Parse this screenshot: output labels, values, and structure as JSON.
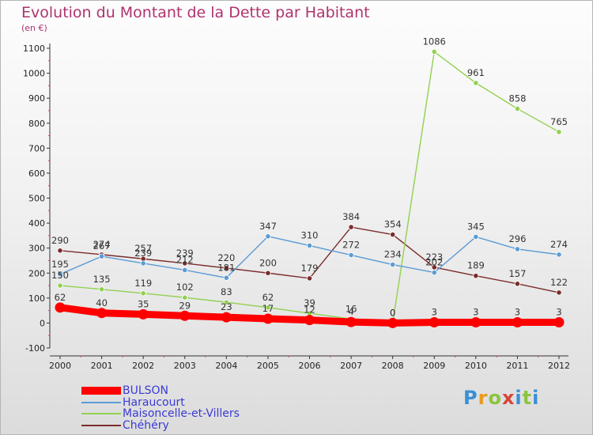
{
  "title": "Evolution du Montant de la Dette par Habitant",
  "unit": "(en €)",
  "logo": {
    "text": "Proxiti",
    "colors": [
      "#3a8fd6",
      "#e99a1f",
      "#8bc43f",
      "#d6453a",
      "#3a8fd6",
      "#8bc43f",
      "#3a8fd6"
    ]
  },
  "chart_data": {
    "type": "line",
    "title": "Evolution du Montant de la Dette par Habitant",
    "ylabel": "(en €)",
    "xlabel": "",
    "x": [
      "2000",
      "2001",
      "2002",
      "2003",
      "2004",
      "2005",
      "2006",
      "2007",
      "2008",
      "2009",
      "2010",
      "2011",
      "2012"
    ],
    "ylim": [
      -100,
      1100
    ],
    "yticks": [
      "-100",
      "0",
      "100",
      "200",
      "300",
      "400",
      "500",
      "600",
      "700",
      "800",
      "900",
      "1000",
      "1100"
    ],
    "grid": false,
    "legend_position": "bottom-left",
    "series": [
      {
        "name": "BULSON",
        "color": "#ff0000",
        "values": [
          62,
          40,
          35,
          29,
          23,
          17,
          12,
          4,
          0,
          3,
          3,
          3,
          3
        ],
        "labels": [
          "62",
          "40",
          "35",
          "29",
          "23",
          "17",
          "12",
          "4",
          "0",
          "3",
          "3",
          "3",
          "3"
        ]
      },
      {
        "name": "Haraucourt",
        "color": "#5b9bd5",
        "values": [
          195,
          267,
          239,
          212,
          181,
          347,
          310,
          272,
          234,
          202,
          345,
          296,
          274
        ],
        "labels": [
          "195",
          "267",
          "239",
          "212",
          "181",
          "347",
          "310",
          "272",
          "234",
          "202",
          "345",
          "296",
          "274"
        ]
      },
      {
        "name": "Maisoncelle-et-Villers",
        "color": "#92d050",
        "values": [
          150,
          135,
          119,
          102,
          83,
          62,
          39,
          16,
          0,
          1086,
          961,
          858,
          765
        ],
        "labels": [
          "150",
          "135",
          "119",
          "102",
          "83",
          "62",
          "39",
          "16",
          "0",
          "1086",
          "961",
          "858",
          "765"
        ]
      },
      {
        "name": "Chéhéry",
        "color": "#7b2c2c",
        "values": [
          290,
          274,
          257,
          239,
          220,
          200,
          179,
          384,
          354,
          223,
          189,
          157,
          122
        ],
        "labels": [
          "290",
          "274",
          "257",
          "239",
          "220",
          "200",
          "179",
          "384",
          "354",
          "223",
          "189",
          "157",
          "122"
        ]
      }
    ]
  }
}
